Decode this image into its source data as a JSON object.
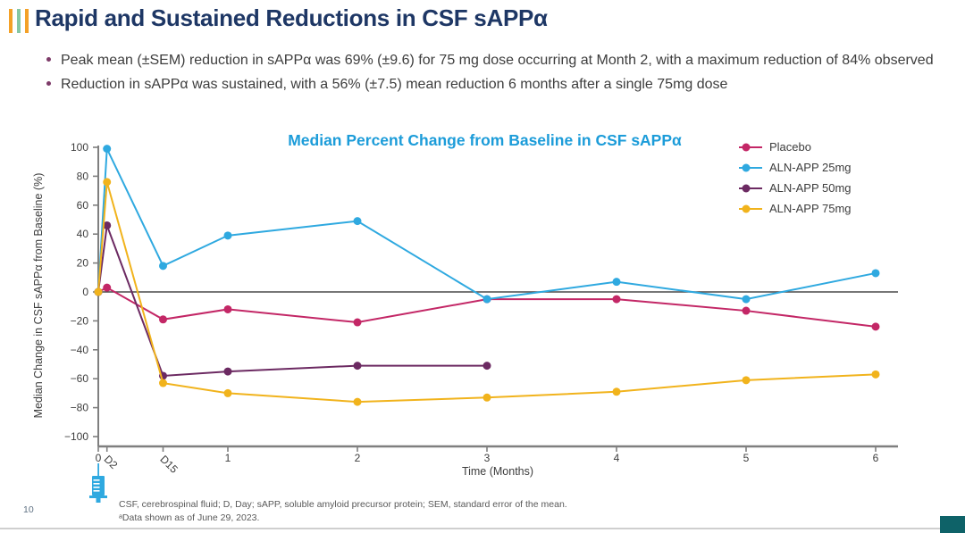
{
  "slide": {
    "title": "Rapid and Sustained Reductions in CSF sAPPα",
    "bullets": [
      {
        "text": "Peak mean (±SEM) reduction in sAPPα was 69% (±9.6) for 75 mg dose occurring at Month 2, with a maximum reduction of 84% observed"
      },
      {
        "text": "Reduction in sAPPα was sustained, with a 56% (±7.5) mean reduction 6 months after a single 75mg dose"
      }
    ],
    "footnotes": [
      "CSF, cerebrospinal fluid; D, Day; sAPP, soluble amyloid precursor protein; SEM, standard error of the mean.",
      "ᵃData shown as of June 29, 2023."
    ],
    "page_number": "10"
  },
  "colors": {
    "title_navy": "#1E3765",
    "accent_orange": "#F4A127",
    "accent_green": "#86C7A4",
    "bullet_dot": "#7D3A68",
    "body_text": "#3D3D3D",
    "chart_title_blue": "#1C9CD9",
    "axis_gray": "#7F7F7F",
    "zero_line_gray": "#4A4A4A",
    "footnote_gray": "#595959",
    "divider_gray": "#CFCFCF",
    "corner_teal": "#0E6268",
    "syringe_blue": "#2FA9E0"
  },
  "icons": {
    "syringe": "dose administered at time 0"
  },
  "chart_data": {
    "type": "line",
    "title": "Median Percent Change from Baseline in CSF sAPPα",
    "xlabel": "Time (Months)",
    "ylabel": "Median Change in CSF sAPPα from Baseline (%)",
    "ylim": [
      -100,
      100
    ],
    "y_ticks": [
      100,
      80,
      60,
      40,
      20,
      0,
      -20,
      -40,
      -60,
      -80,
      -100
    ],
    "x_ticks": [
      {
        "t": 0,
        "label": "0",
        "rotated": false
      },
      {
        "t": 0.067,
        "label": "D2",
        "rotated": true
      },
      {
        "t": 0.5,
        "label": "D15",
        "rotated": true
      },
      {
        "t": 1,
        "label": "1",
        "rotated": false
      },
      {
        "t": 2,
        "label": "2",
        "rotated": false
      },
      {
        "t": 3,
        "label": "3",
        "rotated": false
      },
      {
        "t": 4,
        "label": "4",
        "rotated": false
      },
      {
        "t": 5,
        "label": "5",
        "rotated": false
      },
      {
        "t": 6,
        "label": "6",
        "rotated": false
      }
    ],
    "grid": false,
    "zero_line": true,
    "legend_position": "top-right",
    "series": [
      {
        "name": "Placebo",
        "color": "#C32766",
        "x": [
          0,
          0.067,
          0.5,
          1,
          2,
          3,
          4,
          5,
          6
        ],
        "values": [
          0,
          3,
          -19,
          -12,
          -21,
          -5,
          -5,
          -13,
          -24
        ]
      },
      {
        "name": "ALN-APP 25mg",
        "color": "#2FA9E0",
        "x": [
          0,
          0.067,
          0.5,
          1,
          2,
          3,
          4,
          5,
          6
        ],
        "values": [
          0,
          99,
          18,
          39,
          49,
          -5,
          7,
          -5,
          13
        ]
      },
      {
        "name": "ALN-APP 50mg",
        "color": "#6C2A62",
        "x": [
          0,
          0.067,
          0.5,
          1,
          2,
          3
        ],
        "values": [
          0,
          46,
          -58,
          -55,
          -51,
          -51
        ]
      },
      {
        "name": "ALN-APP 75mg",
        "color": "#F1B31C",
        "x": [
          0,
          0.067,
          0.5,
          1,
          2,
          3,
          4,
          5,
          6
        ],
        "values": [
          0,
          76,
          -63,
          -70,
          -76,
          -73,
          -69,
          -61,
          -57
        ]
      }
    ]
  }
}
